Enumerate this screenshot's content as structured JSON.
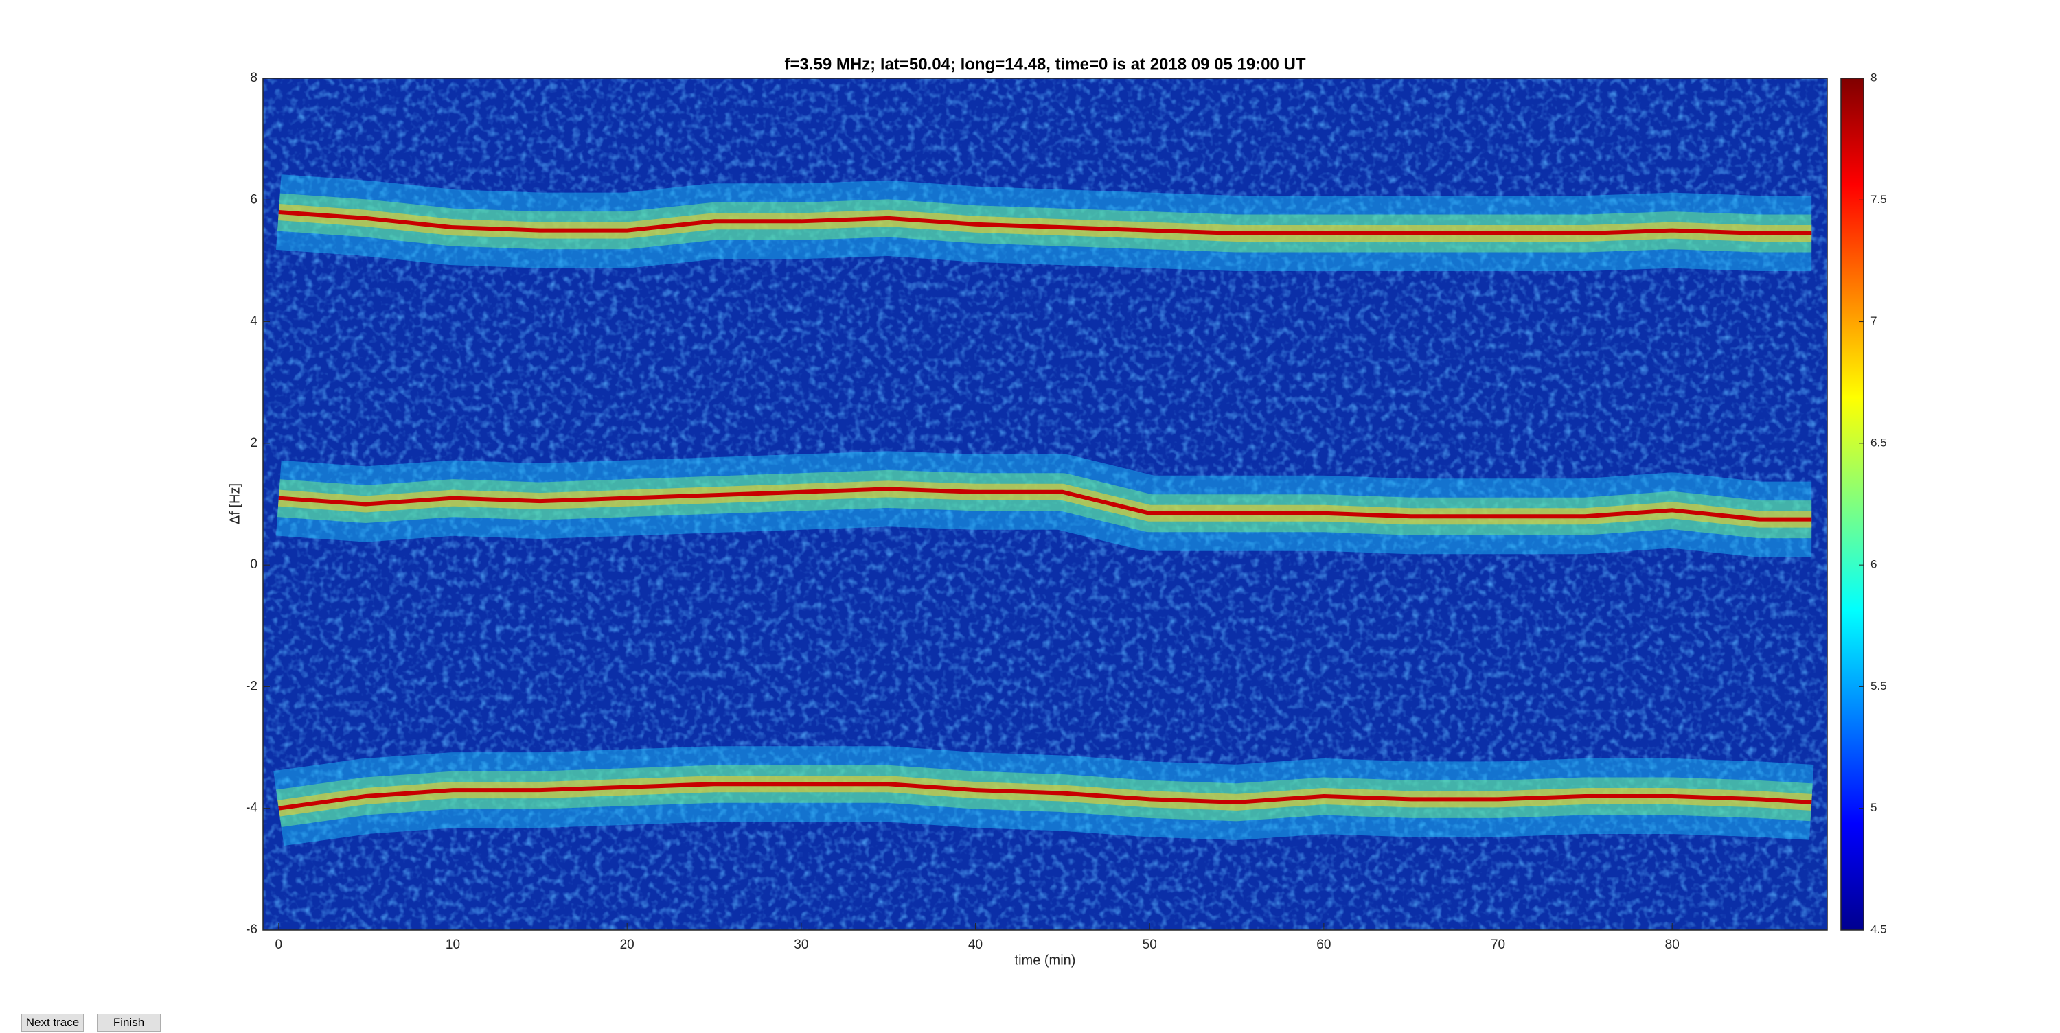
{
  "chart_data": {
    "type": "line",
    "title": "f=3.59 MHz;  lat=50.04; long=14.48, time=0 is at 2018 09 05 19:00 UT",
    "xlabel": "time (min)",
    "ylabel": "Δf [Hz]",
    "x": [
      0,
      5,
      10,
      15,
      20,
      25,
      30,
      35,
      40,
      45,
      50,
      55,
      60,
      65,
      70,
      75,
      80,
      85,
      88
    ],
    "series": [
      {
        "color": "#c80000",
        "values": [
          5.8,
          5.7,
          5.55,
          5.5,
          5.5,
          5.65,
          5.65,
          5.7,
          5.6,
          5.55,
          5.5,
          5.45,
          5.45,
          5.45,
          5.45,
          5.45,
          5.5,
          5.45,
          5.45
        ]
      },
      {
        "color": "#c80000",
        "values": [
          1.1,
          1.0,
          1.1,
          1.05,
          1.1,
          1.15,
          1.2,
          1.25,
          1.2,
          1.2,
          0.85,
          0.85,
          0.85,
          0.8,
          0.8,
          0.8,
          0.9,
          0.75,
          0.75
        ]
      },
      {
        "color": "#c80000",
        "values": [
          -4.0,
          -3.8,
          -3.7,
          -3.7,
          -3.65,
          -3.6,
          -3.6,
          -3.6,
          -3.7,
          -3.75,
          -3.85,
          -3.9,
          -3.8,
          -3.85,
          -3.85,
          -3.8,
          -3.8,
          -3.85,
          -3.9
        ]
      }
    ],
    "xlim": [
      -0.9,
      88.9
    ],
    "xticks": [
      0,
      10,
      20,
      30,
      40,
      50,
      60,
      70,
      80
    ],
    "ylim": [
      -6,
      8
    ],
    "yticks": [
      -6,
      -4,
      -2,
      0,
      2,
      4,
      6,
      8
    ],
    "background_color": "#0b2fa8",
    "colormap": "jet",
    "clim": [
      4.5,
      8
    ],
    "cticks": [
      4.5,
      5,
      5.5,
      6,
      6.5,
      7,
      7.5,
      8
    ]
  },
  "buttons": [
    "Next trace",
    "Finish"
  ]
}
